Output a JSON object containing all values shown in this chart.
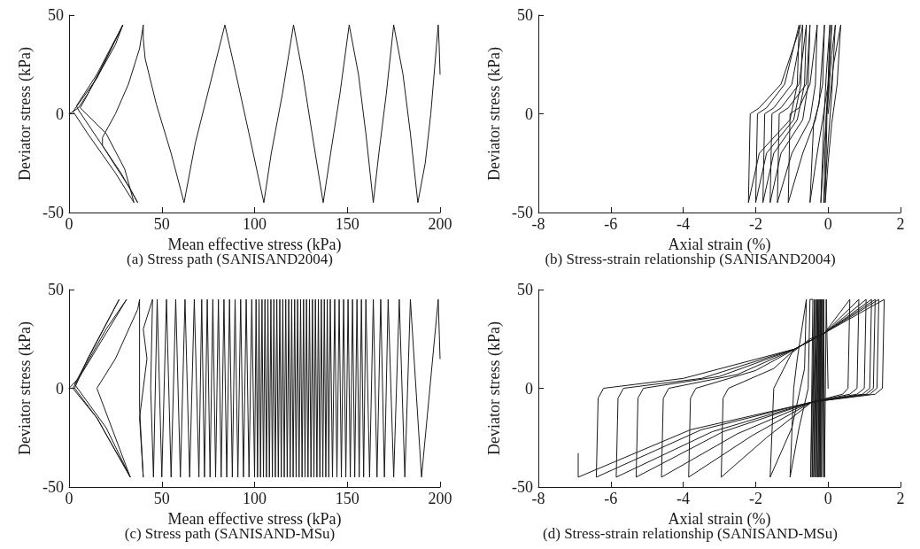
{
  "chart_data": [
    {
      "type": "line",
      "title": "(a) Stress path (SANISAND2004)",
      "xlabel": "Mean effective stress (kPa)",
      "ylabel": "Deviator stress (kPa)",
      "xlim": [
        0,
        200
      ],
      "ylim": [
        -50,
        50
      ],
      "xticks": [
        0,
        50,
        100,
        150,
        200
      ],
      "yticks": [
        -50,
        0,
        50
      ],
      "marker": "none",
      "series": [
        {
          "color": "#1a1a1a",
          "x": [
            200,
            199.5,
            199,
            195,
            192,
            188,
            184,
            180,
            175,
            171,
            167,
            164,
            160,
            156,
            151,
            146,
            141,
            137,
            131,
            126,
            121,
            115,
            109,
            105,
            97,
            90,
            84,
            76,
            68,
            62,
            55,
            47,
            41,
            40,
            40,
            38,
            32,
            25,
            18,
            18,
            24,
            33,
            37,
            28,
            15,
            5,
            4,
            15,
            29,
            20,
            9,
            6,
            20,
            30,
            35,
            25,
            10,
            3,
            2,
            15,
            29,
            25,
            10,
            5,
            2,
            0
          ],
          "values": [
            20,
            35,
            45,
            0,
            -25,
            -45,
            -10,
            20,
            45,
            10,
            -20,
            -45,
            -10,
            20,
            45,
            10,
            -20,
            -45,
            -10,
            20,
            45,
            10,
            -20,
            -45,
            -10,
            20,
            45,
            15,
            -15,
            -45,
            -20,
            5,
            28,
            38,
            45,
            33,
            15,
            0,
            -12,
            -16,
            -25,
            -38,
            -45,
            -30,
            -12,
            2,
            4,
            20,
            45,
            28,
            8,
            3,
            -10,
            -28,
            -45,
            -30,
            -10,
            0,
            1,
            18,
            45,
            35,
            10,
            3,
            1,
            0
          ]
        }
      ]
    },
    {
      "type": "line",
      "title": "(b) Stress-strain relationship (SANISAND2004)",
      "xlabel": "Axial strain (%)",
      "ylabel": "Deviator stress (kPa)",
      "xlim": [
        -8,
        2
      ],
      "ylim": [
        -50,
        50
      ],
      "xticks": [
        -8,
        -6,
        -4,
        -2,
        0,
        2
      ],
      "yticks": [
        -50,
        0,
        50
      ],
      "marker": "none",
      "series": [
        {
          "color": "#1a1a1a",
          "x": [
            0,
            0.15,
            0.35,
            0.25,
            0.1,
            0,
            -0.08,
            -0.03,
            0.1,
            0.2,
            0.1,
            0,
            -0.12,
            -0.05,
            0.05,
            0.1,
            0,
            -0.1,
            -0.2,
            -0.12,
            -0.05,
            0.05,
            0,
            -0.15,
            -0.3,
            -0.5,
            -0.4,
            -0.25,
            -0.1,
            -0.15,
            -0.35,
            -0.7,
            -1.1,
            -1.05,
            -0.8,
            -0.5,
            -0.3,
            -0.35,
            -0.5,
            -1.0,
            -1.4,
            -1.35,
            -1.1,
            -0.6,
            -0.5,
            -0.55,
            -0.7,
            -1.3,
            -1.6,
            -1.55,
            -1.3,
            -0.8,
            -0.6,
            -0.65,
            -0.85,
            -1.5,
            -1.8,
            -1.75,
            -1.5,
            -1.0,
            -0.7,
            -0.75,
            -0.95,
            -1.7,
            -2.0,
            -1.95,
            -1.7,
            -1.2,
            -0.8,
            -0.85,
            -1.05,
            -1.9,
            -2.2,
            -2.15,
            -1.9,
            -1.3,
            -0.75
          ],
          "values": [
            0,
            25,
            45,
            15,
            -5,
            -25,
            -45,
            0,
            30,
            45,
            10,
            -15,
            -45,
            0,
            30,
            45,
            10,
            -15,
            -45,
            -5,
            20,
            45,
            15,
            -3,
            -20,
            -45,
            -5,
            5,
            45,
            15,
            -3,
            -20,
            -45,
            0,
            3,
            15,
            45,
            15,
            -3,
            -20,
            -45,
            0,
            3,
            15,
            45,
            15,
            -3,
            -20,
            -45,
            0,
            3,
            15,
            45,
            15,
            -3,
            -20,
            -45,
            0,
            3,
            15,
            45,
            15,
            -3,
            -20,
            -45,
            0,
            3,
            15,
            45,
            15,
            -3,
            -20,
            -45,
            0,
            3,
            15,
            45
          ]
        }
      ]
    },
    {
      "type": "line",
      "title": "(c) Stress path (SANISAND-MSu)",
      "xlabel": "Mean effective stress (kPa)",
      "ylabel": "Deviator stress (kPa)",
      "xlim": [
        0,
        200
      ],
      "ylim": [
        -50,
        50
      ],
      "xticks": [
        0,
        50,
        100,
        150,
        200
      ],
      "yticks": [
        -50,
        0,
        50
      ],
      "marker": "none",
      "series": [
        {
          "color": "#1a1a1a",
          "x": [
            200,
            199,
            190,
            184,
            181,
            178,
            175,
            172,
            170,
            168,
            166,
            164,
            162,
            160,
            158.8,
            157.6,
            156.4,
            155.2,
            154,
            152.8,
            151.6,
            150.4,
            149.2,
            148,
            146.8,
            145.6,
            144.4,
            143.2,
            142,
            140.8,
            140,
            139.2,
            138.4,
            137.6,
            136.8,
            136,
            135.2,
            134.4,
            133.6,
            132.8,
            132,
            131.2,
            130.4,
            129.6,
            128.8,
            128,
            127.2,
            126.4,
            125.6,
            124.8,
            124,
            123.2,
            122.4,
            121.6,
            120.8,
            120,
            119.2,
            118.4,
            117.6,
            116.8,
            116,
            115.2,
            114.4,
            113.6,
            112.8,
            112,
            111.2,
            110.4,
            109.6,
            108.8,
            108,
            107.2,
            106.4,
            105.6,
            104.8,
            104,
            103.2,
            102.4,
            101.6,
            100.8,
            100,
            98.5,
            97,
            95.5,
            94,
            92.5,
            91,
            89.5,
            88,
            86.5,
            85,
            83.5,
            82,
            80.5,
            79,
            77.5,
            76,
            74.5,
            73,
            71.5,
            70,
            67.5,
            65,
            62.5,
            60,
            57.5,
            55,
            52.5,
            50,
            47.5,
            45.5,
            44,
            45,
            40,
            42,
            38,
            40,
            38,
            38,
            37,
            25,
            15,
            33,
            20,
            3,
            27,
            10,
            3,
            15,
            33,
            15,
            2,
            31,
            20,
            5,
            0
          ],
          "values": [
            15,
            45,
            -45,
            45,
            -45,
            45,
            -45,
            45,
            -45,
            45,
            -45,
            45,
            -45,
            45,
            -45,
            45,
            -45,
            45,
            -45,
            45,
            -45,
            45,
            -45,
            45,
            -45,
            45,
            -45,
            45,
            -45,
            45,
            -45,
            45,
            -45,
            45,
            -45,
            45,
            -45,
            45,
            -45,
            45,
            -45,
            45,
            -45,
            45,
            -45,
            45,
            -45,
            45,
            -45,
            45,
            -45,
            45,
            -45,
            45,
            -45,
            45,
            -45,
            45,
            -45,
            45,
            -45,
            45,
            -45,
            45,
            -45,
            45,
            -45,
            45,
            -45,
            45,
            -45,
            45,
            -45,
            45,
            -45,
            45,
            -45,
            45,
            -45,
            45,
            -45,
            45,
            -45,
            45,
            -45,
            45,
            -45,
            45,
            -45,
            45,
            -45,
            45,
            -45,
            45,
            -45,
            45,
            -45,
            45,
            -45,
            45,
            -45,
            45,
            -45,
            45,
            -45,
            45,
            -45,
            45,
            -45,
            45,
            -45,
            0,
            45,
            30,
            15,
            -15,
            -45,
            -10,
            45,
            40,
            15,
            0,
            -45,
            -20,
            2,
            45,
            15,
            0,
            -15,
            -45,
            -15,
            0,
            45,
            30,
            5,
            0
          ]
        }
      ]
    },
    {
      "type": "line",
      "title": "(d) Stress-strain relationship (SANISAND-MSu)",
      "xlabel": "Axial strain (%)",
      "ylabel": "Deviator stress (kPa)",
      "xlim": [
        -8,
        2
      ],
      "ylim": [
        -50,
        50
      ],
      "xticks": [
        -8,
        -6,
        -4,
        -2,
        0,
        2
      ],
      "yticks": [
        -50,
        0,
        50
      ],
      "marker": "none",
      "series": [
        {
          "color": "#1a1a1a",
          "x": [
            0,
            -0.05,
            -0.1,
            -0.12,
            -0.12,
            -0.15,
            -0.18,
            -0.18,
            -0.22,
            -0.2,
            -0.25,
            -0.22,
            -0.28,
            -0.25,
            -0.32,
            -0.28,
            -0.36,
            -0.3,
            -0.4,
            -0.34,
            -0.44,
            -0.38,
            -0.48,
            -0.42,
            -0.5,
            -0.55,
            -0.8,
            -1.05,
            -0.95,
            -0.85,
            -0.6,
            -0.65,
            -1.0,
            -1.6,
            -1.5,
            -1.0,
            -0.5,
            -0.1,
            0.6,
            0.55,
            0.4,
            -0.45,
            -1.7,
            -2.95,
            -2.9,
            -2.75,
            -1.5,
            -0.9,
            -0.1,
            0.85,
            0.8,
            0.6,
            -0.45,
            -2.1,
            -3.85,
            -3.8,
            -3.65,
            -2,
            -0.9,
            -0.1,
            1.05,
            1.0,
            0.8,
            -0.45,
            -2.5,
            -4.6,
            -4.55,
            -4.4,
            -2.5,
            -0.9,
            -0.1,
            1.2,
            1.15,
            0.95,
            -0.45,
            -2.9,
            -5.3,
            -5.25,
            -5.1,
            -3,
            -0.9,
            -0.1,
            1.3,
            1.25,
            1.05,
            -0.45,
            -3.2,
            -5.85,
            -5.8,
            -5.65,
            -3.5,
            -0.9,
            -0.1,
            1.4,
            1.35,
            1.15,
            -0.45,
            -3.5,
            -6.4,
            -6.35,
            -6.2,
            -4,
            -0.9,
            -0.1,
            1.55,
            1.5,
            1.3,
            -0.45,
            -3.8,
            -6.9,
            -6.9
          ],
          "values": [
            0,
            45,
            -45,
            45,
            -45,
            45,
            -45,
            45,
            -45,
            45,
            -45,
            45,
            -45,
            45,
            -45,
            45,
            -45,
            45,
            -45,
            45,
            -45,
            45,
            -45,
            45,
            45,
            0,
            -20,
            -45,
            0,
            15,
            45,
            10,
            -20,
            -45,
            0,
            18,
            25,
            28,
            45,
            0,
            -3,
            -7,
            -25,
            -45,
            -5,
            0,
            10,
            20,
            28,
            45,
            0,
            -3,
            -7,
            -24,
            -45,
            -5,
            0,
            9,
            20,
            28,
            45,
            0,
            -3,
            -7,
            -23,
            -45,
            -5,
            0,
            7,
            20,
            28,
            45,
            0,
            -3,
            -7,
            -22,
            -45,
            -5,
            0,
            6,
            20,
            28,
            45,
            0,
            -3,
            -7,
            -22,
            -45,
            -5,
            0,
            5,
            20,
            28,
            45,
            0,
            -3,
            -7,
            -21,
            -45,
            -5,
            0,
            5,
            20,
            28,
            45,
            0,
            -3,
            -7,
            -21,
            -45,
            -33
          ]
        }
      ]
    }
  ]
}
